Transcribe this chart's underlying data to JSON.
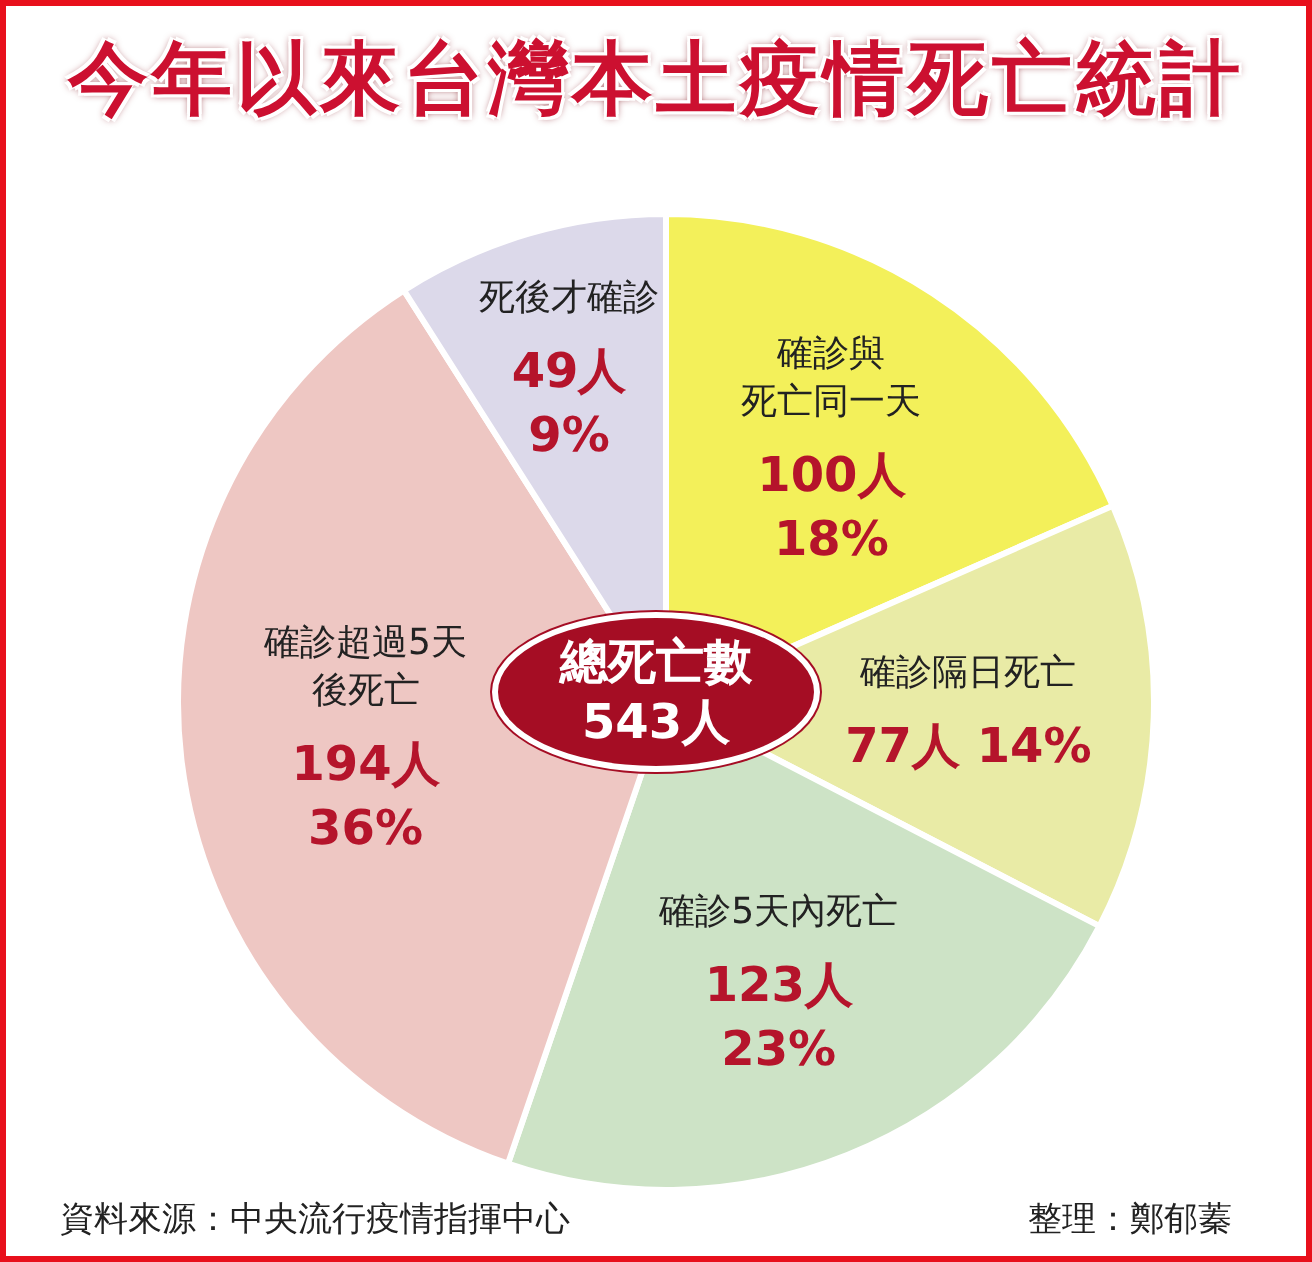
{
  "chart_data": {
    "type": "pie",
    "title": "今年以來台灣本土疫情死亡統計",
    "categories": [
      "確診與死亡同一天",
      "確診隔日死亡",
      "確診5天內死亡",
      "確診超過5天後死亡",
      "死後才確診"
    ],
    "values": [
      100,
      77,
      123,
      194,
      49
    ],
    "colors": [
      "#f3f05a",
      "#e9eba6",
      "#cde3c6",
      "#eec7c3",
      "#dcd9ea"
    ],
    "value_labels": [
      "100人\n18%",
      "77人 14%",
      "123人\n23%",
      "194人\n36%",
      "49人\n9%"
    ],
    "annotations": [
      "總死亡數\n543人",
      "資料來源：中央流行疫情指揮中心",
      "整理：鄭郁蓁"
    ]
  }
}
